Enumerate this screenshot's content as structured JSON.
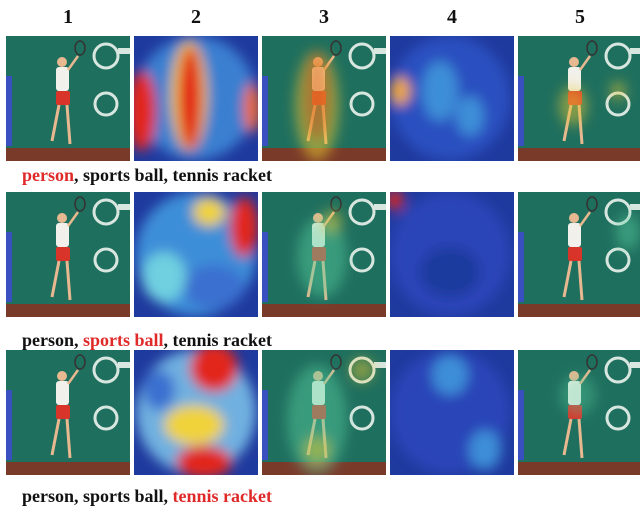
{
  "columns": [
    "1",
    "2",
    "3",
    "4",
    "5"
  ],
  "captions": [
    {
      "labels": [
        "person",
        "sports ball",
        "tennis racket"
      ],
      "highlight": 0
    },
    {
      "labels": [
        "person",
        "sports ball",
        "tennis racket"
      ],
      "highlight": 1
    },
    {
      "labels": [
        "person",
        "sports ball",
        "tennis racket"
      ],
      "highlight": 2
    }
  ],
  "colors": {
    "court_bg": "#1f6f5e",
    "court_floor": "#7a3a2a",
    "shirt": "#f2f0ea",
    "shorts": "#d8342a",
    "highlight_text": "#e02a2a",
    "heatmap_low": "#1f3a9e",
    "heatmap_high": "#c8161b"
  },
  "panel_types": [
    "original image",
    "heatmap",
    "image with heatmap overlay",
    "heatmap",
    "image with heatmap overlay"
  ]
}
